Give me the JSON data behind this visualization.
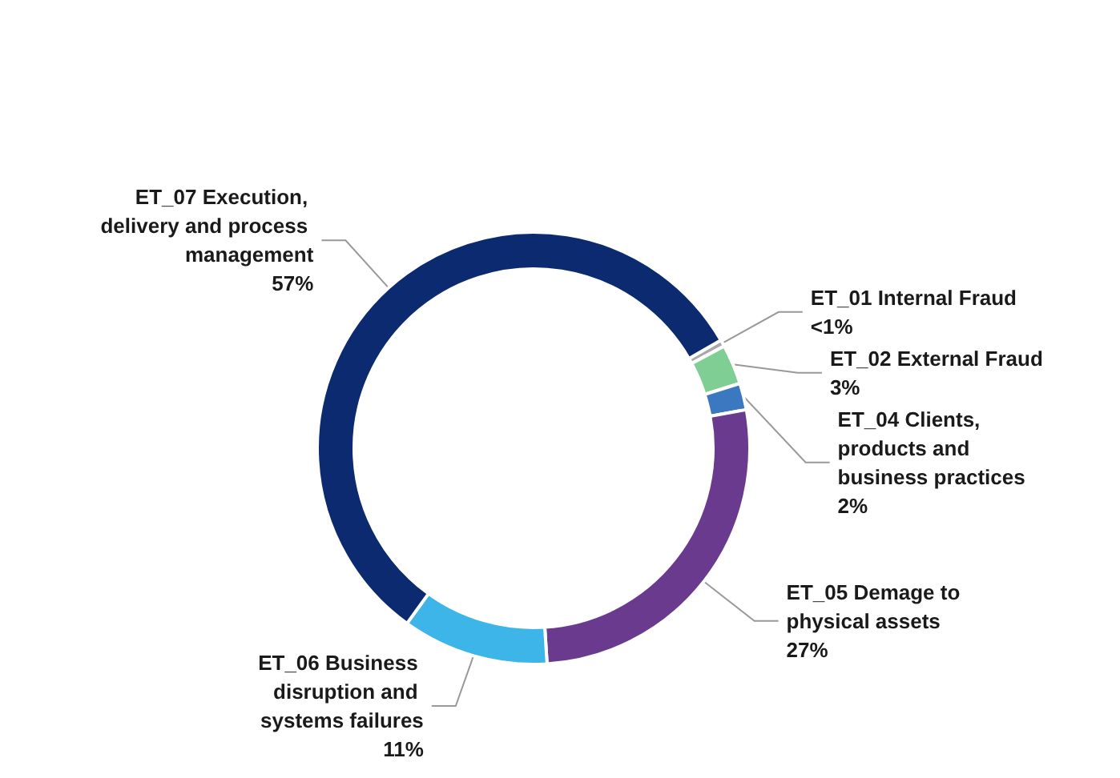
{
  "chart_data": {
    "type": "donut",
    "categories": [
      "ET_01 Internal Fraud",
      "ET_02 External Fraud",
      "ET_04 Clients, products and business practices",
      "ET_05 Demage to physical assets",
      "ET_06 Business disruption and systems failures",
      "ET_07 Execution, delivery and process management"
    ],
    "values": [
      0.5,
      3,
      2,
      27,
      11,
      57
    ],
    "value_labels": [
      "<1%",
      "3%",
      "2%",
      "27%",
      "11%",
      "57%"
    ],
    "colors": [
      "#a9a9a9",
      "#7fcf94",
      "#3b78c0",
      "#6a3a8e",
      "#3db5e8",
      "#0b2a6f"
    ],
    "legend": false
  }
}
